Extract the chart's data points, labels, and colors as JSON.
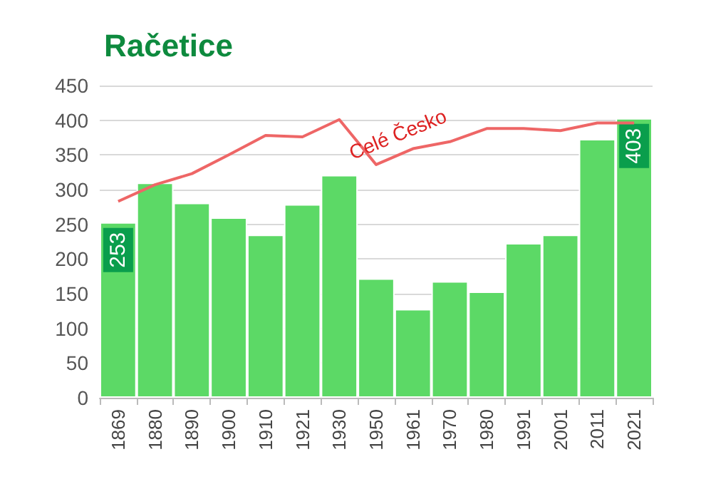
{
  "chart_data": {
    "type": "bar",
    "title": "Račetice",
    "categories": [
      "1869",
      "1880",
      "1890",
      "1900",
      "1910",
      "1921",
      "1930",
      "1950",
      "1961",
      "1970",
      "1980",
      "1991",
      "2001",
      "2011",
      "2021"
    ],
    "series": [
      {
        "color": "#5cd966",
        "values": [
          253,
          310,
          281,
          260,
          235,
          279,
          321,
          172,
          128,
          168,
          153,
          223,
          235,
          373,
          403
        ],
        "value_labels": [
          "253",
          null,
          null,
          null,
          null,
          null,
          null,
          null,
          null,
          null,
          null,
          null,
          null,
          null,
          "403"
        ]
      },
      {
        "type": "line",
        "name": "Celé Česko",
        "color": "#ee6666",
        "values": [
          283,
          307,
          323,
          350,
          378,
          376,
          401,
          336,
          359,
          369,
          388,
          388,
          385,
          396,
          396
        ]
      }
    ],
    "ylim": [
      0,
      450
    ],
    "yticks": [
      0,
      50,
      100,
      150,
      200,
      250,
      300,
      350,
      400,
      450
    ],
    "grid": "y",
    "legend": false,
    "marker": "none"
  }
}
